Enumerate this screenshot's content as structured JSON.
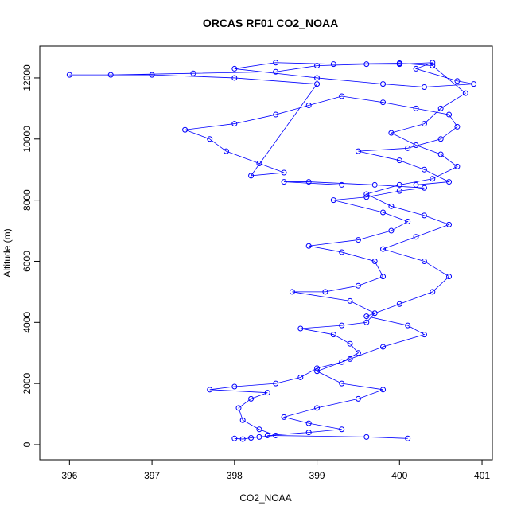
{
  "chart_data": {
    "type": "scatter",
    "title": "ORCAS RF01 CO2_NOAA",
    "x_label": "CO2_NOAA",
    "y_label": "Altitude (m)",
    "color": "#0000ff",
    "connect": true,
    "x": [
      398.0,
      398.1,
      398.2,
      398.3,
      398.5,
      398.3,
      398.1,
      398.05,
      398.2,
      398.4,
      397.7,
      398.0,
      398.5,
      398.8,
      399.0,
      399.3,
      399.5,
      399.4,
      399.2,
      398.8,
      399.3,
      399.6,
      399.7,
      399.4,
      398.7,
      399.1,
      399.5,
      399.8,
      399.7,
      399.3,
      398.9,
      399.5,
      399.9,
      400.1,
      399.8,
      399.2,
      399.6,
      400.0,
      400.3,
      399.7,
      398.9,
      398.6,
      399.3,
      400.2,
      400.6,
      400.3,
      400.0,
      399.5,
      400.1,
      400.5,
      400.7,
      400.6,
      400.2,
      399.8,
      399.3,
      398.9,
      398.5,
      398.0,
      397.4,
      397.7,
      397.9,
      398.3,
      398.6,
      398.2,
      399.0,
      398.0,
      397.0,
      396.0,
      396.5,
      397.5,
      398.5,
      399.0,
      399.6,
      400.0,
      400.4,
      400.2,
      400.7,
      400.9,
      400.3,
      399.8,
      399.0,
      398.0,
      398.5,
      399.2,
      400.0,
      400.4,
      400.8,
      400.5,
      400.3,
      399.9,
      400.2,
      400.5,
      400.7,
      400.4,
      400.0,
      399.6,
      399.9,
      400.3,
      400.6,
      400.2,
      399.8,
      400.3,
      400.6,
      400.4,
      400.0,
      399.6,
      400.1,
      400.3,
      399.8,
      399.4,
      399.0,
      399.3,
      399.8,
      399.5,
      399.0,
      398.6,
      398.9,
      399.3,
      398.9,
      398.4,
      399.6,
      400.1
    ],
    "values": [
      200,
      180,
      220,
      250,
      300,
      500,
      800,
      1200,
      1500,
      1700,
      1800,
      1900,
      2000,
      2200,
      2500,
      2700,
      3000,
      3300,
      3600,
      3800,
      3900,
      4000,
      4300,
      4700,
      5000,
      5000,
      5200,
      5500,
      6000,
      6300,
      6500,
      6700,
      7000,
      7300,
      7600,
      8000,
      8100,
      8300,
      8400,
      8500,
      8600,
      8600,
      8500,
      8500,
      8600,
      9000,
      9300,
      9600,
      9700,
      10000,
      10400,
      10800,
      11000,
      11200,
      11400,
      11100,
      10800,
      10500,
      10300,
      10000,
      9600,
      9200,
      8900,
      8800,
      11800,
      12000,
      12100,
      12100,
      12100,
      12150,
      12200,
      12400,
      12450,
      12450,
      12500,
      12300,
      11900,
      11800,
      11700,
      11800,
      12000,
      12300,
      12500,
      12450,
      12480,
      12400,
      11500,
      11000,
      10500,
      10200,
      9800,
      9500,
      9100,
      8700,
      8500,
      8200,
      7800,
      7500,
      7200,
      6800,
      6400,
      6000,
      5500,
      5000,
      4600,
      4200,
      3900,
      3600,
      3200,
      2800,
      2400,
      2000,
      1800,
      1500,
      1200,
      900,
      700,
      500,
      400,
      300,
      250,
      200
    ],
    "xlim": [
      395.64,
      401.125
    ],
    "ylim": [
      -495,
      13040
    ],
    "xticks": [
      396,
      397,
      398,
      399,
      400,
      401
    ],
    "yticks": [
      0,
      2000,
      4000,
      6000,
      8000,
      10000,
      12000
    ]
  }
}
